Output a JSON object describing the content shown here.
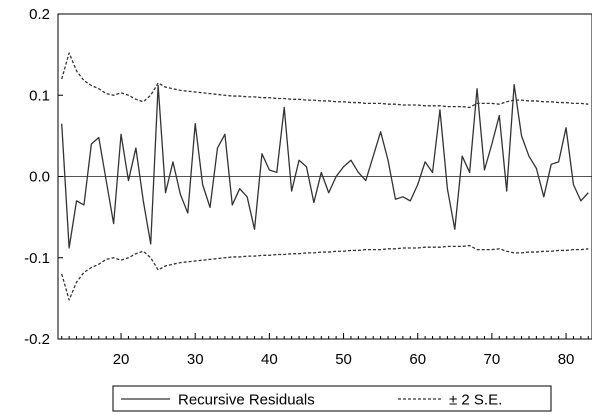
{
  "chart_data": {
    "type": "line",
    "x": [
      12,
      13,
      14,
      15,
      16,
      17,
      18,
      19,
      20,
      21,
      22,
      23,
      24,
      25,
      26,
      27,
      28,
      29,
      30,
      31,
      32,
      33,
      34,
      35,
      36,
      37,
      38,
      39,
      40,
      41,
      42,
      43,
      44,
      45,
      46,
      47,
      48,
      49,
      50,
      51,
      52,
      53,
      54,
      55,
      56,
      57,
      58,
      59,
      60,
      61,
      62,
      63,
      64,
      65,
      66,
      67,
      68,
      69,
      70,
      71,
      72,
      73,
      74,
      75,
      76,
      77,
      78,
      79,
      80,
      81,
      82,
      83
    ],
    "series": [
      {
        "name": "Recursive Residuals",
        "style": "solid",
        "values": [
          0.065,
          -0.088,
          -0.03,
          -0.035,
          0.04,
          0.048,
          -0.005,
          -0.058,
          0.052,
          -0.005,
          0.035,
          -0.03,
          -0.083,
          0.112,
          -0.02,
          0.018,
          -0.022,
          -0.045,
          0.065,
          -0.01,
          -0.038,
          0.035,
          0.052,
          -0.035,
          -0.015,
          -0.025,
          -0.065,
          0.028,
          0.008,
          0.005,
          0.085,
          -0.018,
          0.02,
          0.012,
          -0.032,
          0.005,
          -0.02,
          0.0,
          0.012,
          0.02,
          0.005,
          -0.005,
          0.025,
          0.055,
          0.02,
          -0.028,
          -0.025,
          -0.03,
          -0.01,
          0.018,
          0.005,
          0.082,
          -0.015,
          -0.065,
          0.025,
          0.005,
          0.108,
          0.008,
          0.04,
          0.075,
          -0.018,
          0.113,
          0.05,
          0.025,
          0.01,
          -0.025,
          0.015,
          0.018,
          0.06,
          -0.01,
          -0.03,
          -0.02
        ]
      },
      {
        "name": "± 2 S.E.",
        "style": "dashed",
        "values": [
          0.12,
          0.152,
          0.13,
          0.118,
          0.112,
          0.108,
          0.102,
          0.1,
          0.103,
          0.1,
          0.095,
          0.092,
          0.1,
          0.115,
          0.11,
          0.108,
          0.106,
          0.105,
          0.104,
          0.103,
          0.102,
          0.101,
          0.1,
          0.099,
          0.099,
          0.098,
          0.098,
          0.097,
          0.097,
          0.096,
          0.096,
          0.095,
          0.095,
          0.094,
          0.094,
          0.093,
          0.093,
          0.092,
          0.092,
          0.091,
          0.091,
          0.09,
          0.09,
          0.09,
          0.089,
          0.089,
          0.088,
          0.088,
          0.088,
          0.087,
          0.087,
          0.087,
          0.086,
          0.086,
          0.086,
          0.085,
          0.09,
          0.09,
          0.09,
          0.089,
          0.092,
          0.094,
          0.094,
          0.093,
          0.093,
          0.092,
          0.092,
          0.091,
          0.091,
          0.09,
          0.09,
          0.089
        ]
      }
    ],
    "xlim": [
      11.5,
      83.5
    ],
    "ylim": [
      -0.2,
      0.2
    ],
    "xticks": [
      20,
      30,
      40,
      50,
      60,
      70,
      80
    ],
    "xtick_labels": [
      "20",
      "30",
      "40",
      "50",
      "60",
      "70",
      "80"
    ],
    "yticks": [
      0.2,
      0.1,
      0.0,
      -0.1,
      -0.2
    ],
    "ytick_labels": [
      "0.2",
      "0.1",
      "0.0",
      "-0.1",
      "-0.2"
    ],
    "zero_line": true,
    "grid": false,
    "legend_position": "bottom-center",
    "colors": {
      "solid_line": "#333333",
      "dashed_line": "#333333",
      "zero_line": "#555555",
      "axes": "#000000"
    }
  }
}
